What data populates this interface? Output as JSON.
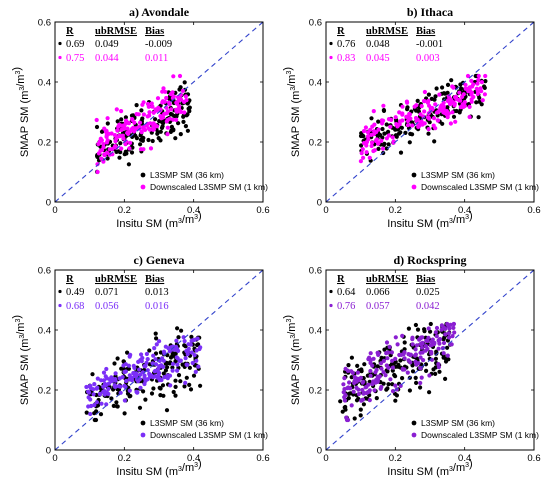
{
  "chart_data": [
    {
      "type": "scatter",
      "title": "a) Avondale",
      "xlabel": "Insitu SM (m³/m³)",
      "ylabel": "SMAP SM (m³/m³)",
      "xlim": [
        0,
        0.6
      ],
      "ylim": [
        0,
        0.6
      ],
      "x_ticks": [
        "0",
        "0.2",
        "0.4",
        "0.6"
      ],
      "y_ticks": [
        "0",
        "0.2",
        "0.4",
        "0.6"
      ],
      "stats_headers": [
        "R",
        "ubRMSE",
        "Bias"
      ],
      "series": [
        {
          "name": "L3SMP SM (36 km)",
          "color": "#000000",
          "stats": [
            "0.69",
            "0.049",
            "-0.009"
          ],
          "cluster": {
            "x_range": [
              0.12,
              0.39
            ],
            "slope": 0.62,
            "intercept": 0.09,
            "spread": 0.04,
            "n": 170
          }
        },
        {
          "name": "Downscaled L3SMP SM (1 km)",
          "color": "#ff00ff",
          "stats": [
            "0.75",
            "0.044",
            "0.011"
          ],
          "cluster": {
            "x_range": [
              0.12,
              0.38
            ],
            "slope": 0.65,
            "intercept": 0.1,
            "spread": 0.035,
            "n": 170
          }
        }
      ],
      "legend_position": "bottom-right",
      "reference_line": "1:1 dashed"
    },
    {
      "type": "scatter",
      "title": "b) Ithaca",
      "xlabel": "Insitu SM (m³/m³)",
      "ylabel": "SMAP SM (m³/m³)",
      "xlim": [
        0,
        0.6
      ],
      "ylim": [
        0,
        0.6
      ],
      "x_ticks": [
        "0",
        "0.2",
        "0.4",
        "0.6"
      ],
      "y_ticks": [
        "0",
        "0.2",
        "0.4",
        "0.6"
      ],
      "stats_headers": [
        "R",
        "ubRMSE",
        "Bias"
      ],
      "series": [
        {
          "name": "L3SMP SM (36 km)",
          "color": "#000000",
          "stats": [
            "0.76",
            "0.048",
            "-0.001"
          ],
          "cluster": {
            "x_range": [
              0.1,
              0.46
            ],
            "slope": 0.55,
            "intercept": 0.13,
            "spread": 0.035,
            "n": 190
          }
        },
        {
          "name": "Downscaled L3SMP SM (1 km)",
          "color": "#ff00ff",
          "stats": [
            "0.83",
            "0.045",
            "0.003"
          ],
          "cluster": {
            "x_range": [
              0.1,
              0.46
            ],
            "slope": 0.55,
            "intercept": 0.135,
            "spread": 0.03,
            "n": 190
          }
        }
      ],
      "legend_position": "bottom-right",
      "reference_line": "1:1 dashed"
    },
    {
      "type": "scatter",
      "title": "c) Geneva",
      "xlabel": "Insitu SM (m³/m³)",
      "ylabel": "SMAP SM (m³/m³)",
      "xlim": [
        0,
        0.6
      ],
      "ylim": [
        0,
        0.6
      ],
      "x_ticks": [
        "0",
        "0.2",
        "0.4",
        "0.6"
      ],
      "y_ticks": [
        "0",
        "0.2",
        "0.4",
        "0.6"
      ],
      "stats_headers": [
        "R",
        "ubRMSE",
        "Bias"
      ],
      "series": [
        {
          "name": "L3SMP SM (36 km)",
          "color": "#000000",
          "stats": [
            "0.49",
            "0.071",
            "0.013"
          ],
          "cluster": {
            "x_range": [
              0.09,
              0.42
            ],
            "slope": 0.45,
            "intercept": 0.13,
            "spread": 0.05,
            "n": 190
          }
        },
        {
          "name": "Downscaled L3SMP SM (1 km)",
          "color": "#7b2ff7",
          "stats": [
            "0.68",
            "0.056",
            "0.016"
          ],
          "cluster": {
            "x_range": [
              0.09,
              0.42
            ],
            "slope": 0.48,
            "intercept": 0.135,
            "spread": 0.035,
            "n": 190
          }
        }
      ],
      "legend_position": "bottom-right",
      "reference_line": "1:1 dashed"
    },
    {
      "type": "scatter",
      "title": "d) Rockspring",
      "xlabel": "Insitu SM (m³/m³)",
      "ylabel": "SMAP SM (m³/m³)",
      "xlim": [
        0,
        0.6
      ],
      "ylim": [
        0,
        0.6
      ],
      "x_ticks": [
        "0",
        "0.2",
        "0.4",
        "0.6"
      ],
      "y_ticks": [
        "0",
        "0.2",
        "0.4",
        "0.6"
      ],
      "stats_headers": [
        "R",
        "ubRMSE",
        "Bias"
      ],
      "series": [
        {
          "name": "L3SMP SM (36 km)",
          "color": "#000000",
          "stats": [
            "0.64",
            "0.066",
            "0.025"
          ],
          "cluster": {
            "x_range": [
              0.04,
              0.36
            ],
            "slope": 0.55,
            "intercept": 0.16,
            "spread": 0.05,
            "n": 190
          }
        },
        {
          "name": "Downscaled L3SMP SM (1 km)",
          "color": "#8a1fd1",
          "stats": [
            "0.76",
            "0.057",
            "0.042"
          ],
          "cluster": {
            "x_range": [
              0.05,
              0.37
            ],
            "slope": 0.6,
            "intercept": 0.165,
            "spread": 0.04,
            "n": 190
          }
        }
      ],
      "legend_position": "bottom-right",
      "reference_line": "1:1 dashed"
    }
  ]
}
